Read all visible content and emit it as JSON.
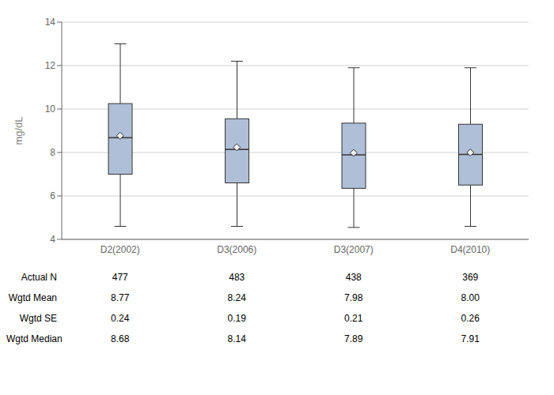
{
  "chart_data": {
    "type": "box",
    "ylabel": "mg/dL",
    "categories": [
      "D2(2002)",
      "D3(2006)",
      "D3(2007)",
      "D4(2010)"
    ],
    "boxes": [
      {
        "q1": 7.0,
        "median": 8.68,
        "q3": 10.25,
        "whislo": 4.6,
        "whishi": 13.0,
        "mean": 8.77
      },
      {
        "q1": 6.6,
        "median": 8.14,
        "q3": 9.55,
        "whislo": 4.6,
        "whishi": 12.2,
        "mean": 8.24
      },
      {
        "q1": 6.35,
        "median": 7.89,
        "q3": 9.35,
        "whislo": 4.55,
        "whishi": 11.9,
        "mean": 7.98
      },
      {
        "q1": 6.5,
        "median": 7.91,
        "q3": 9.3,
        "whislo": 4.6,
        "whishi": 11.9,
        "mean": 8.0
      }
    ],
    "color": "#b0bfd8",
    "ylim": [
      4,
      14
    ],
    "yticks": [
      4,
      6,
      8,
      10,
      12,
      14
    ],
    "grid": true,
    "table": [
      {
        "label": "Actual N",
        "values": [
          "477",
          "483",
          "438",
          "369"
        ]
      },
      {
        "label": "Wgtd Mean",
        "values": [
          "8.77",
          "8.24",
          "7.98",
          "8.00"
        ]
      },
      {
        "label": "Wgtd SE",
        "values": [
          "0.24",
          "0.19",
          "0.21",
          "0.26"
        ]
      },
      {
        "label": "Wgtd Median",
        "values": [
          "8.68",
          "8.14",
          "7.89",
          "7.91"
        ]
      }
    ]
  }
}
